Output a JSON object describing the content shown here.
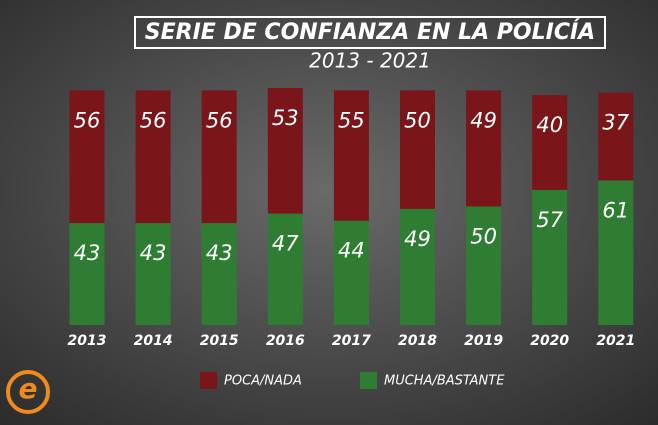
{
  "chart_data": {
    "type": "stacked-bar",
    "title": "SERIE DE CONFIANZA EN LA POLICÍA",
    "subtitle": "2013 - 2021",
    "categories": [
      "2013",
      "2014",
      "2015",
      "2016",
      "2017",
      "2018",
      "2019",
      "2020",
      "2021"
    ],
    "series": [
      {
        "name": "MUCHA/BASTANTE",
        "color": "#2f7d33",
        "values": [
          43,
          43,
          43,
          47,
          44,
          49,
          50,
          57,
          61
        ]
      },
      {
        "name": "POCA/NADA",
        "color": "#7a1619",
        "values": [
          56,
          56,
          56,
          53,
          55,
          50,
          49,
          40,
          37
        ]
      }
    ],
    "ylim": [
      0,
      100
    ]
  }
}
